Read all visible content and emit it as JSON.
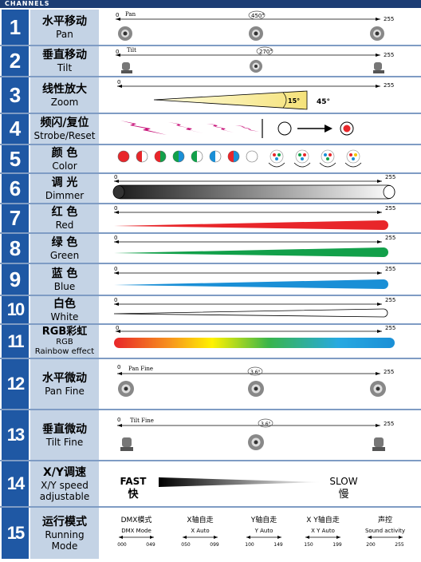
{
  "header": {
    "title": "CHANNELS"
  },
  "rows": [
    {
      "num": "1",
      "cn": "水平移动",
      "en": "Pan"
    },
    {
      "num": "2",
      "cn": "垂直移动",
      "en": "Tilt"
    },
    {
      "num": "3",
      "cn": "线性放大",
      "en": "Zoom"
    },
    {
      "num": "4",
      "cn": "频闪/复位",
      "en": "Strobe/Reset"
    },
    {
      "num": "5",
      "cn": "颜 色",
      "en": "Color"
    },
    {
      "num": "6",
      "cn": "调 光",
      "en": "Dimmer"
    },
    {
      "num": "7",
      "cn": "红 色",
      "en": "Red"
    },
    {
      "num": "8",
      "cn": "绿 色",
      "en": "Green"
    },
    {
      "num": "9",
      "cn": "蓝 色",
      "en": "Blue"
    },
    {
      "num": "10",
      "cn": "白色",
      "en": "White"
    },
    {
      "num": "11",
      "cn": "RGB彩虹",
      "en": "RGB",
      "en2": "Rainbow effect"
    },
    {
      "num": "12",
      "cn": "水平微动",
      "en": "Pan Fine"
    },
    {
      "num": "13",
      "cn": "垂直微动",
      "en": "Tilt Fine"
    },
    {
      "num": "14",
      "cn": "X/Y调速",
      "en": "X/Y speed",
      "en2": "adjustable"
    },
    {
      "num": "15",
      "cn": "运行模式",
      "en": "Running",
      "en2": "Mode"
    }
  ],
  "scale": {
    "min": "0",
    "max": "255"
  },
  "pan": {
    "label": "Pan",
    "deg": "450°"
  },
  "tilt": {
    "label": "Tilt",
    "deg": "270°"
  },
  "zoom": {
    "min_deg": "15°",
    "max_deg": "45°"
  },
  "panfine": {
    "label": "Pan Fine",
    "deg": "3.6°"
  },
  "tiltfine": {
    "label": "Tilt Fine",
    "deg": "3.6°"
  },
  "speed": {
    "fast_en": "FAST",
    "fast_cn": "快",
    "slow_en": "SLOW",
    "slow_cn": "慢"
  },
  "modes": [
    {
      "cn": "DMX模式",
      "en": "DMX Mode",
      "lo": "000",
      "hi": "049"
    },
    {
      "cn": "X轴自走",
      "en": "X Auto",
      "lo": "050",
      "hi": "099"
    },
    {
      "cn": "Y轴自走",
      "en": "Y Auto",
      "lo": "100",
      "hi": "149"
    },
    {
      "cn": "X Y轴自走",
      "en": "X Y Auto",
      "lo": "150",
      "hi": "199"
    },
    {
      "cn": "声控",
      "en": "Sound activity",
      "lo": "200",
      "hi": "255"
    }
  ],
  "colors": {
    "red": "#e8262a",
    "green": "#12a04a",
    "blue": "#1a8fd6",
    "accent": "#1f58a4",
    "yellow": "#fff49a",
    "magenta": "#c8147a"
  }
}
